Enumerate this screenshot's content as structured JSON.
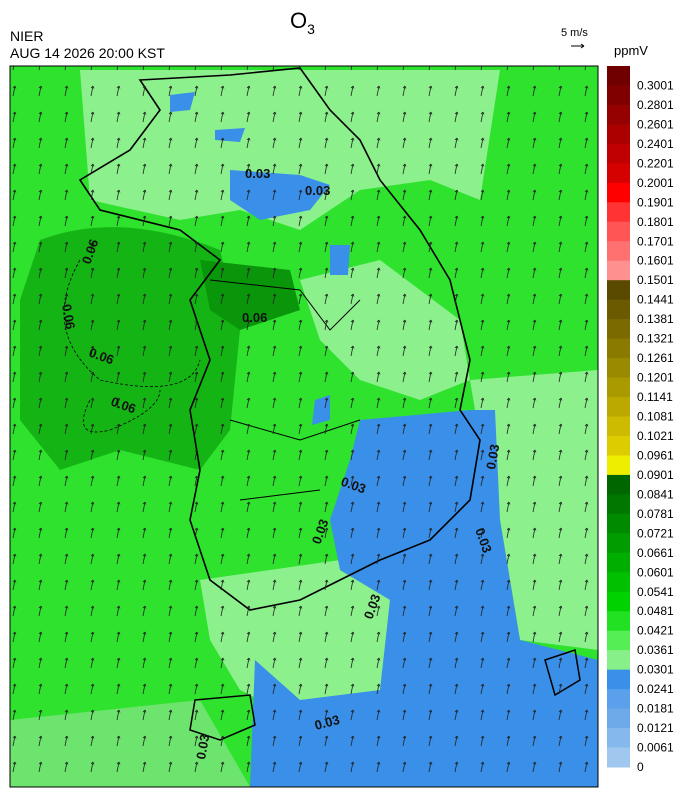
{
  "header": {
    "title": "O",
    "title_sub": "3",
    "agency": "NIER",
    "datetime": "AUG 14 2026 20:00 KST",
    "wind_scale": "5 m/s",
    "unit": "ppmV"
  },
  "colorbar": {
    "labels": [
      "0.3001",
      "0.2801",
      "0.2601",
      "0.2401",
      "0.2201",
      "0.2001",
      "0.1901",
      "0.1801",
      "0.1701",
      "0.1601",
      "0.1501",
      "0.1441",
      "0.1381",
      "0.1321",
      "0.1261",
      "0.1201",
      "0.1141",
      "0.1081",
      "0.1021",
      "0.0961",
      "0.0901",
      "0.0841",
      "0.0781",
      "0.0721",
      "0.0661",
      "0.0601",
      "0.0541",
      "0.0481",
      "0.0421",
      "0.0361",
      "0.0301",
      "0.0241",
      "0.0181",
      "0.0121",
      "0.0061",
      "0"
    ],
    "colors": [
      "#700000",
      "#800000",
      "#950000",
      "#aa0000",
      "#c00000",
      "#d50000",
      "#ff0000",
      "#ff3333",
      "#ff5555",
      "#ff7070",
      "#ff9090",
      "#5a4a00",
      "#6b5a00",
      "#7a6a00",
      "#8a7a00",
      "#9a8a00",
      "#aa9a00",
      "#bba900",
      "#ccbb00",
      "#dccc00",
      "#eeee00",
      "#006600",
      "#007800",
      "#008a00",
      "#009c00",
      "#00ae00",
      "#00c000",
      "#00d200",
      "#22e022",
      "#55ee55",
      "#88f088",
      "#3a8fe8",
      "#5aa0ea",
      "#6eaaea",
      "#85b8ec",
      "#a0c8ee"
    ]
  },
  "map": {
    "contour_labels": [
      "0.03",
      "0.03",
      "0.06",
      "0.06",
      "0.06",
      "0.06",
      "0.06",
      "0.03",
      "0.03",
      "0.03",
      "0.03",
      "0.03",
      "0.03",
      "0.03"
    ]
  }
}
